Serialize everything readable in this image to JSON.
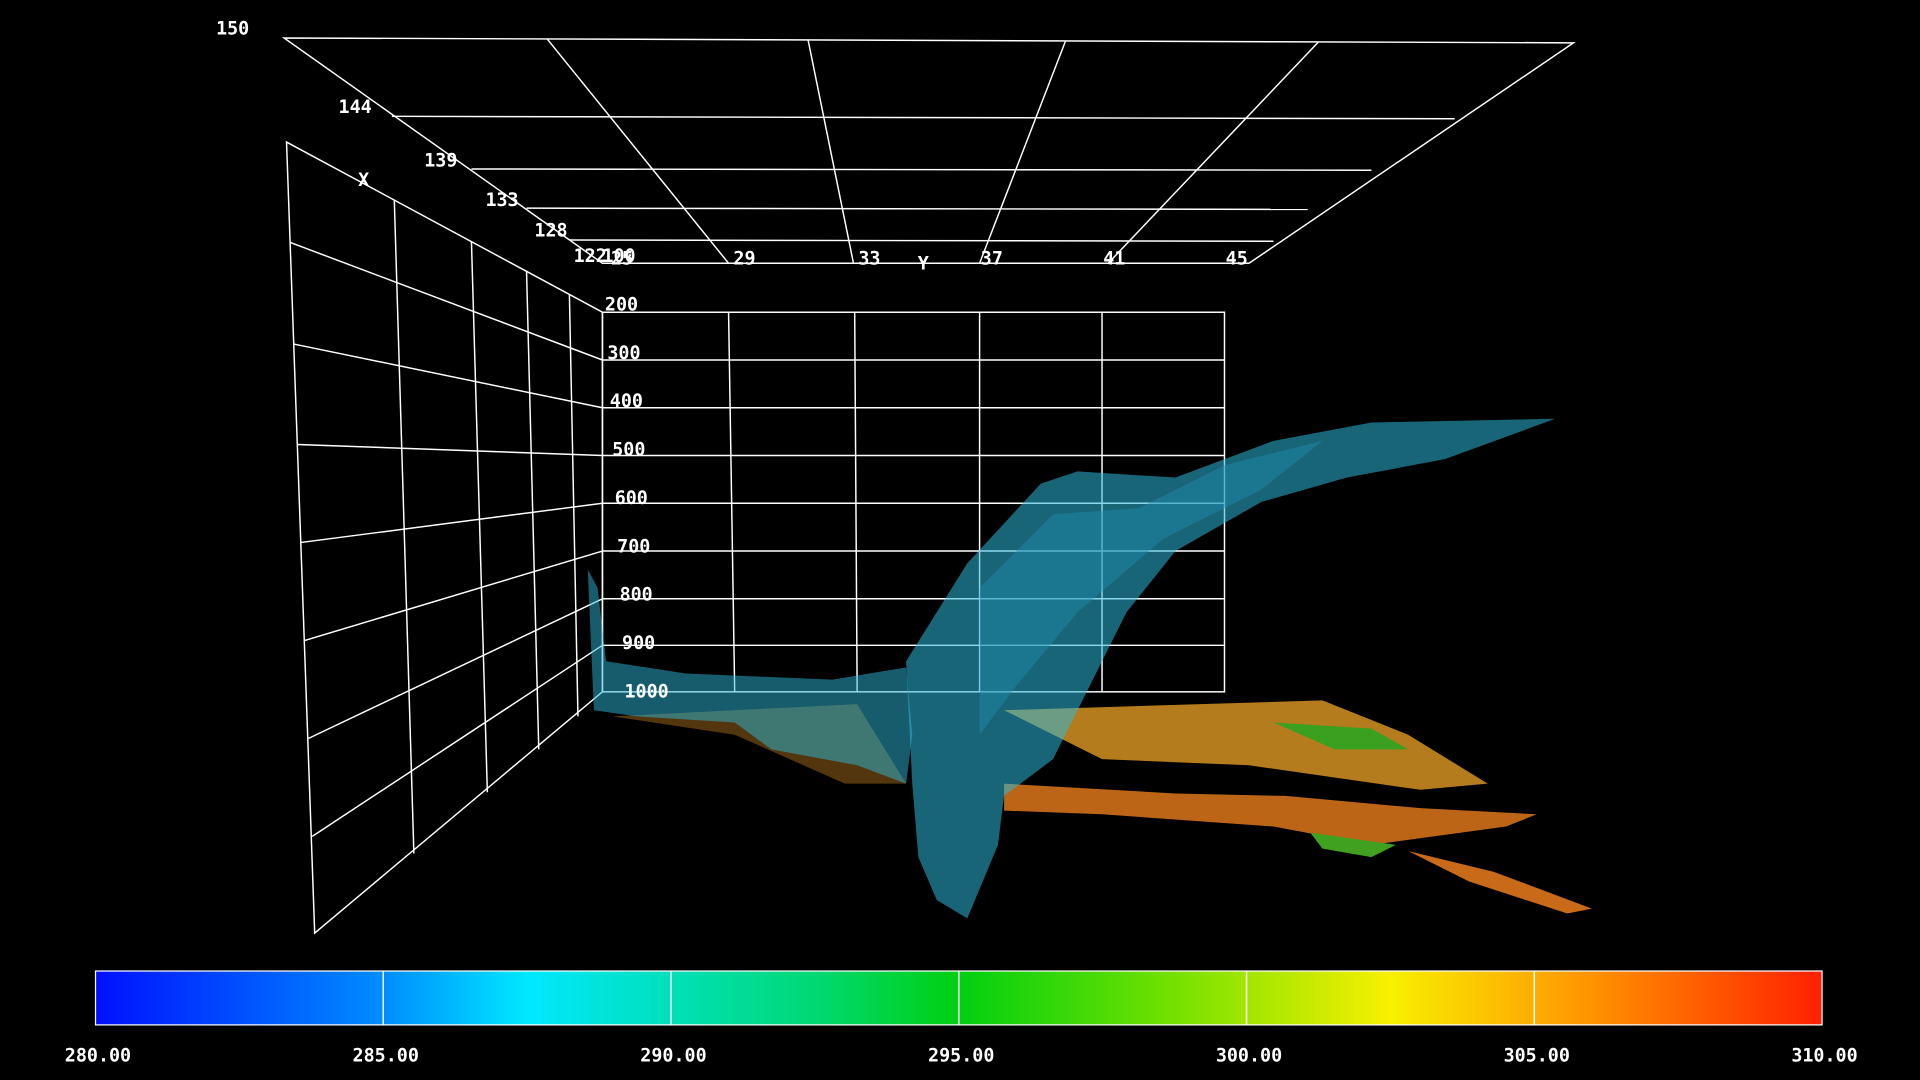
{
  "axes": {
    "x": {
      "title": "X",
      "ticks": [
        "122",
        "128",
        "133",
        "139",
        "144",
        "150"
      ]
    },
    "y": {
      "title": "Y",
      "ticks": [
        "25",
        "29",
        "33",
        "37",
        "41",
        "45"
      ]
    },
    "z": {
      "ticks": [
        "100",
        "200",
        "300",
        "400",
        "500",
        "600",
        "700",
        "800",
        "900",
        "1000"
      ]
    }
  },
  "colorbar": {
    "ticks": [
      "280.00",
      "285.00",
      "290.00",
      "295.00",
      "300.00",
      "305.00",
      "310.00"
    ]
  }
}
